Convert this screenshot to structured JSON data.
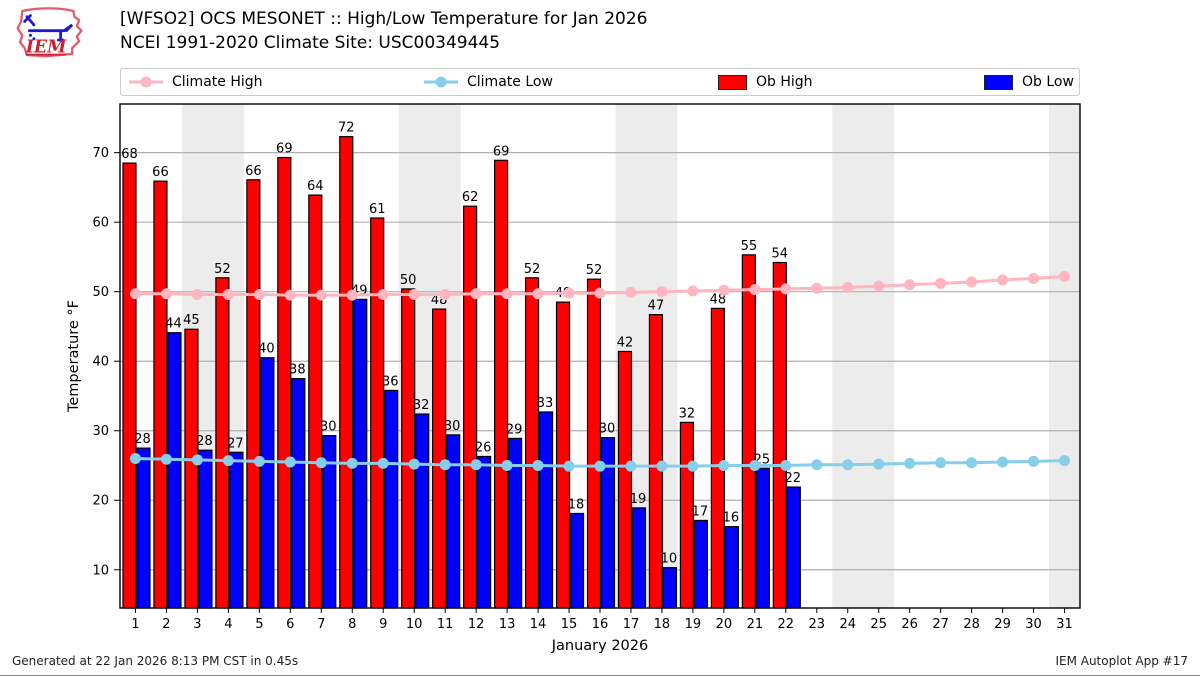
{
  "header": {
    "logo_text": "IEM",
    "title_line1": "[WFSO2] OCS MESONET :: High/Low Temperature for Jan 2026",
    "title_line2": "NCEI 1991-2020 Climate Site: USC00349445"
  },
  "legend": {
    "items": [
      {
        "label": "Climate High",
        "color": "#ffb6c1",
        "swatch": "line-marker"
      },
      {
        "label": "Climate Low",
        "color": "#87ceeb",
        "swatch": "line-marker"
      },
      {
        "label": "Ob High",
        "color": "#ff0000",
        "swatch": "rect"
      },
      {
        "label": "Ob Low",
        "color": "#0000ff",
        "swatch": "rect"
      }
    ]
  },
  "chart_data": {
    "type": "bar",
    "title": "[WFSO2] OCS MESONET :: High/Low Temperature for Jan 2026",
    "subtitle": "NCEI 1991-2020 Climate Site: USC00349445",
    "xlabel": "January 2026",
    "ylabel": "Temperature °F",
    "days": [
      1,
      2,
      3,
      4,
      5,
      6,
      7,
      8,
      9,
      10,
      11,
      12,
      13,
      14,
      15,
      16,
      17,
      18,
      19,
      20,
      21,
      22,
      23,
      24,
      25,
      26,
      27,
      28,
      29,
      30,
      31
    ],
    "ylim": [
      4.5,
      77.0
    ],
    "yticks": [
      10,
      20,
      30,
      40,
      50,
      60,
      70
    ],
    "grid": "horizontal",
    "legend_position": "top",
    "weekend_bands": [
      [
        3,
        4
      ],
      [
        10,
        11
      ],
      [
        17,
        18
      ],
      [
        24,
        25
      ],
      [
        31,
        31
      ]
    ],
    "colors": {
      "grid": "#b0b0b0",
      "band": "#ececec",
      "axis": "#000000"
    },
    "series": [
      {
        "name": "Climate High",
        "type": "line",
        "color": "#ffb6c1",
        "values": [
          49.7,
          49.7,
          49.6,
          49.6,
          49.6,
          49.5,
          49.5,
          49.5,
          49.6,
          49.6,
          49.6,
          49.7,
          49.7,
          49.7,
          49.8,
          49.8,
          49.9,
          50.0,
          50.1,
          50.2,
          50.3,
          50.4,
          50.5,
          50.6,
          50.8,
          51.0,
          51.2,
          51.4,
          51.7,
          51.9,
          52.2
        ]
      },
      {
        "name": "Climate Low",
        "type": "line",
        "color": "#87ceeb",
        "values": [
          26.0,
          25.9,
          25.8,
          25.7,
          25.6,
          25.5,
          25.4,
          25.3,
          25.3,
          25.2,
          25.1,
          25.1,
          25.0,
          25.0,
          24.9,
          24.9,
          24.9,
          24.9,
          24.9,
          25.0,
          25.0,
          25.0,
          25.1,
          25.1,
          25.2,
          25.3,
          25.4,
          25.4,
          25.5,
          25.6,
          25.7
        ]
      },
      {
        "name": "Ob High",
        "type": "bar",
        "color": "#ff0000",
        "values": [
          68.5,
          65.9,
          44.6,
          52.0,
          66.1,
          69.3,
          63.9,
          72.3,
          60.6,
          50.4,
          47.5,
          62.3,
          68.9,
          52.0,
          48.5,
          51.8,
          41.4,
          46.7,
          31.2,
          47.6,
          55.3,
          54.2
        ],
        "labels": [
          68,
          66,
          45,
          52,
          66,
          69,
          64,
          72,
          61,
          50,
          48,
          62,
          69,
          52,
          49,
          52,
          42,
          47,
          32,
          48,
          55,
          54
        ]
      },
      {
        "name": "Ob Low",
        "type": "bar",
        "color": "#0000ff",
        "values": [
          27.5,
          44.1,
          27.2,
          26.9,
          40.5,
          37.5,
          29.3,
          48.9,
          35.8,
          32.4,
          29.4,
          26.3,
          28.9,
          32.7,
          18.1,
          29.0,
          18.9,
          10.3,
          17.1,
          16.2,
          24.6,
          21.9
        ],
        "labels": [
          28,
          44,
          28,
          27,
          40,
          38,
          30,
          49,
          36,
          32,
          30,
          26,
          29,
          33,
          18,
          30,
          19,
          10,
          17,
          16,
          25,
          22
        ]
      }
    ]
  },
  "footer": {
    "left": "Generated at 22 Jan 2026 8:13 PM CST in 0.45s",
    "right": "IEM Autoplot App #17"
  }
}
